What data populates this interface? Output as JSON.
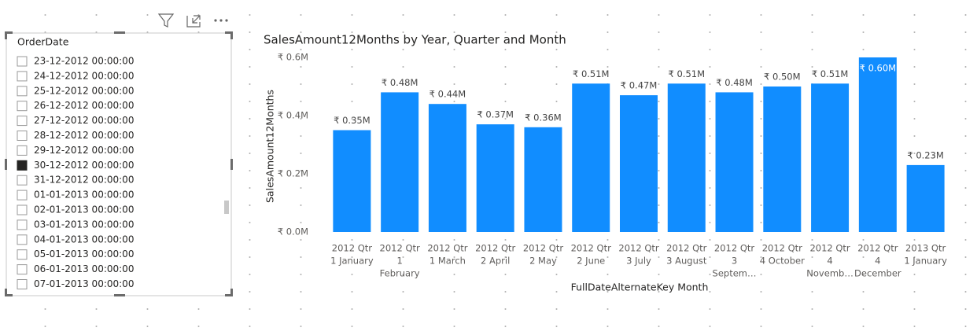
{
  "slicer": {
    "title": "OrderDate",
    "items": [
      {
        "label": "23-12-2012 00:00:00",
        "checked": false
      },
      {
        "label": "24-12-2012 00:00:00",
        "checked": false
      },
      {
        "label": "25-12-2012 00:00:00",
        "checked": false
      },
      {
        "label": "26-12-2012 00:00:00",
        "checked": false
      },
      {
        "label": "27-12-2012 00:00:00",
        "checked": false
      },
      {
        "label": "28-12-2012 00:00:00",
        "checked": false
      },
      {
        "label": "29-12-2012 00:00:00",
        "checked": false
      },
      {
        "label": "30-12-2012 00:00:00",
        "checked": true
      },
      {
        "label": "31-12-2012 00:00:00",
        "checked": false
      },
      {
        "label": "01-01-2013 00:00:00",
        "checked": false
      },
      {
        "label": "02-01-2013 00:00:00",
        "checked": false
      },
      {
        "label": "03-01-2013 00:00:00",
        "checked": false
      },
      {
        "label": "04-01-2013 00:00:00",
        "checked": false
      },
      {
        "label": "05-01-2013 00:00:00",
        "checked": false
      },
      {
        "label": "06-01-2013 00:00:00",
        "checked": false
      },
      {
        "label": "07-01-2013 00:00:00",
        "checked": false
      }
    ]
  },
  "chart_data": {
    "type": "bar",
    "title": "SalesAmount12Months by Year, Quarter and Month",
    "x_label": "FullDateAlternateKey Month",
    "y_label": "SalesAmount12Months",
    "categories": [
      [
        "2012 Qtr",
        "1 January"
      ],
      [
        "2012 Qtr",
        "1",
        "February"
      ],
      [
        "2012 Qtr",
        "1 March"
      ],
      [
        "2012 Qtr",
        "2 April"
      ],
      [
        "2012 Qtr",
        "2 May"
      ],
      [
        "2012 Qtr",
        "2 June"
      ],
      [
        "2012 Qtr",
        "3 July"
      ],
      [
        "2012 Qtr",
        "3 August"
      ],
      [
        "2012 Qtr",
        "3",
        "Septem…"
      ],
      [
        "2012 Qtr",
        "4 October"
      ],
      [
        "2012 Qtr",
        "4",
        "Novemb…"
      ],
      [
        "2012 Qtr",
        "4",
        "December"
      ],
      [
        "2013 Qtr",
        "1 January"
      ]
    ],
    "values": [
      0.35,
      0.48,
      0.44,
      0.37,
      0.36,
      0.51,
      0.47,
      0.51,
      0.48,
      0.5,
      0.51,
      0.6,
      0.23
    ],
    "value_labels": [
      "₹ 0.35M",
      "₹ 0.48M",
      "₹ 0.44M",
      "₹ 0.37M",
      "₹ 0.36M",
      "₹ 0.51M",
      "₹ 0.47M",
      "₹ 0.51M",
      "₹ 0.48M",
      "₹ 0.50M",
      "₹ 0.51M",
      "₹ 0.60M",
      "₹ 0.23M"
    ],
    "color": "#118dff",
    "ylim": [
      0,
      0.6
    ],
    "yticks": [
      {
        "value": 0,
        "label": "₹ 0.0M"
      },
      {
        "value": 0.2,
        "label": "₹ 0.2M"
      },
      {
        "value": 0.4,
        "label": "₹ 0.4M"
      },
      {
        "value": 0.6,
        "label": "₹ 0.6M"
      }
    ],
    "grid": false
  }
}
